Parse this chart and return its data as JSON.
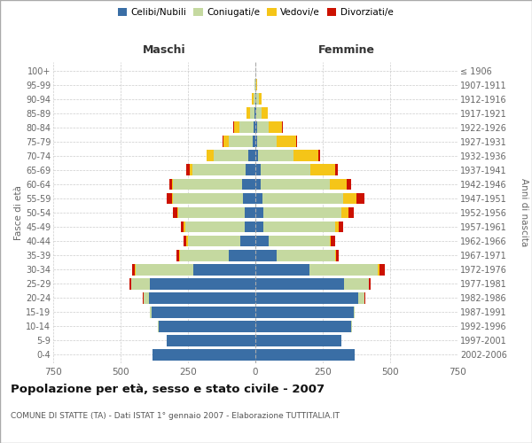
{
  "age_groups": [
    "0-4",
    "5-9",
    "10-14",
    "15-19",
    "20-24",
    "25-29",
    "30-34",
    "35-39",
    "40-44",
    "45-49",
    "50-54",
    "55-59",
    "60-64",
    "65-69",
    "70-74",
    "75-79",
    "80-84",
    "85-89",
    "90-94",
    "95-99",
    "100+"
  ],
  "birth_years": [
    "2002-2006",
    "1997-2001",
    "1992-1996",
    "1987-1991",
    "1982-1986",
    "1977-1981",
    "1972-1976",
    "1967-1971",
    "1962-1966",
    "1957-1961",
    "1952-1956",
    "1947-1951",
    "1942-1946",
    "1937-1941",
    "1932-1936",
    "1927-1931",
    "1922-1926",
    "1917-1921",
    "1912-1916",
    "1907-1911",
    "≤ 1906"
  ],
  "colors": {
    "celibe": "#3a6ea5",
    "coniugato": "#c5d9a0",
    "vedovo": "#f5c518",
    "divorziato": "#cc1100"
  },
  "males": {
    "celibe": [
      380,
      330,
      360,
      385,
      395,
      390,
      230,
      100,
      55,
      40,
      40,
      45,
      50,
      35,
      25,
      10,
      5,
      2,
      0,
      0,
      0
    ],
    "coniugato": [
      0,
      0,
      2,
      5,
      20,
      70,
      215,
      180,
      195,
      220,
      245,
      260,
      255,
      200,
      130,
      90,
      55,
      18,
      8,
      2,
      0
    ],
    "vedovo": [
      0,
      0,
      0,
      0,
      0,
      2,
      2,
      2,
      5,
      5,
      5,
      5,
      5,
      10,
      25,
      20,
      20,
      12,
      5,
      2,
      0
    ],
    "divorziato": [
      0,
      0,
      0,
      0,
      2,
      5,
      10,
      10,
      10,
      12,
      15,
      20,
      10,
      10,
      2,
      2,
      2,
      0,
      0,
      0,
      0
    ]
  },
  "females": {
    "nubile": [
      370,
      320,
      355,
      365,
      380,
      330,
      200,
      80,
      50,
      30,
      30,
      25,
      20,
      20,
      10,
      5,
      5,
      2,
      2,
      0,
      0
    ],
    "coniugata": [
      0,
      0,
      2,
      5,
      25,
      90,
      255,
      215,
      225,
      265,
      290,
      300,
      255,
      185,
      130,
      75,
      45,
      20,
      10,
      4,
      0
    ],
    "vedova": [
      0,
      0,
      0,
      0,
      0,
      2,
      5,
      5,
      5,
      15,
      25,
      50,
      65,
      90,
      95,
      70,
      50,
      25,
      10,
      2,
      0
    ],
    "divorziata": [
      0,
      0,
      0,
      0,
      2,
      5,
      20,
      10,
      15,
      15,
      20,
      30,
      15,
      10,
      5,
      5,
      2,
      0,
      0,
      0,
      0
    ]
  },
  "xlim": 750,
  "title": "Popolazione per età, sesso e stato civile - 2007",
  "subtitle": "COMUNE DI STATTE (TA) - Dati ISTAT 1° gennaio 2007 - Elaborazione TUTTITALIA.IT",
  "ylabel_left": "Fasce di età",
  "ylabel_right": "Anni di nascita",
  "xlabel_maschi": "Maschi",
  "xlabel_femmine": "Femmine"
}
